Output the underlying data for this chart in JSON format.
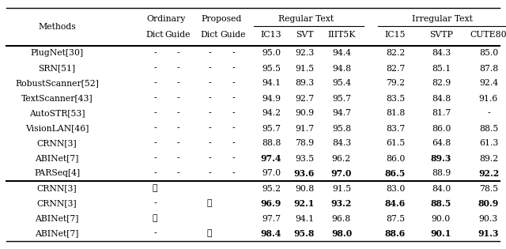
{
  "rows": [
    [
      "PlugNet[30]",
      "-",
      "-",
      "-",
      "-",
      "95.0",
      "92.3",
      "94.4",
      "82.2",
      "84.3",
      "85.0"
    ],
    [
      "SRN[51]",
      "-",
      "-",
      "-",
      "-",
      "95.5",
      "91.5",
      "94.8",
      "82.7",
      "85.1",
      "87.8"
    ],
    [
      "RobustScanner[52]",
      "-",
      "-",
      "-",
      "-",
      "94.1",
      "89.3",
      "95.4",
      "79.2",
      "82.9",
      "92.4"
    ],
    [
      "TextScanner[43]",
      "-",
      "-",
      "-",
      "-",
      "94.9",
      "92.7",
      "95.7",
      "83.5",
      "84.8",
      "91.6"
    ],
    [
      "AutoSTR[53]",
      "-",
      "-",
      "-",
      "-",
      "94.2",
      "90.9",
      "94.7",
      "81.8",
      "81.7",
      "-"
    ],
    [
      "VisionLAN[46]",
      "-",
      "-",
      "-",
      "-",
      "95.7",
      "91.7",
      "95.8",
      "83.7",
      "86.0",
      "88.5"
    ],
    [
      "CRNN[3]",
      "-",
      "-",
      "-",
      "-",
      "88.8",
      "78.9",
      "84.3",
      "61.5",
      "64.8",
      "61.3"
    ],
    [
      "ABINet[7]",
      "-",
      "-",
      "-",
      "-",
      "97.4",
      "93.5",
      "96.2",
      "86.0",
      "89.3",
      "89.2"
    ],
    [
      "PARSeq[4]",
      "-",
      "-",
      "-",
      "-",
      "97.0",
      "93.6",
      "97.0",
      "86.5",
      "88.9",
      "92.2"
    ],
    [
      "CRNN[3]",
      "✓",
      "",
      "",
      "",
      "95.2",
      "90.8",
      "91.5",
      "83.0",
      "84.0",
      "78.5"
    ],
    [
      "CRNN[3]",
      "-",
      "",
      "✓",
      "",
      "96.9",
      "92.1",
      "93.2",
      "84.6",
      "88.5",
      "80.9"
    ],
    [
      "ABINet[7]",
      "✓",
      "",
      "",
      "",
      "97.7",
      "94.1",
      "96.8",
      "87.5",
      "90.0",
      "90.3"
    ],
    [
      "ABINet[7]",
      "-",
      "",
      "✓",
      "",
      "98.4",
      "95.8",
      "98.0",
      "88.6",
      "90.1",
      "91.3"
    ]
  ],
  "bold_cells": {
    "7": [
      5,
      9
    ],
    "8": [
      6,
      7,
      8,
      10
    ],
    "10": [
      5,
      6,
      7,
      8,
      9,
      10
    ],
    "12": [
      5,
      6,
      7,
      8,
      9,
      10
    ]
  },
  "bg_color": "#ffffff",
  "text_color": "#000000"
}
